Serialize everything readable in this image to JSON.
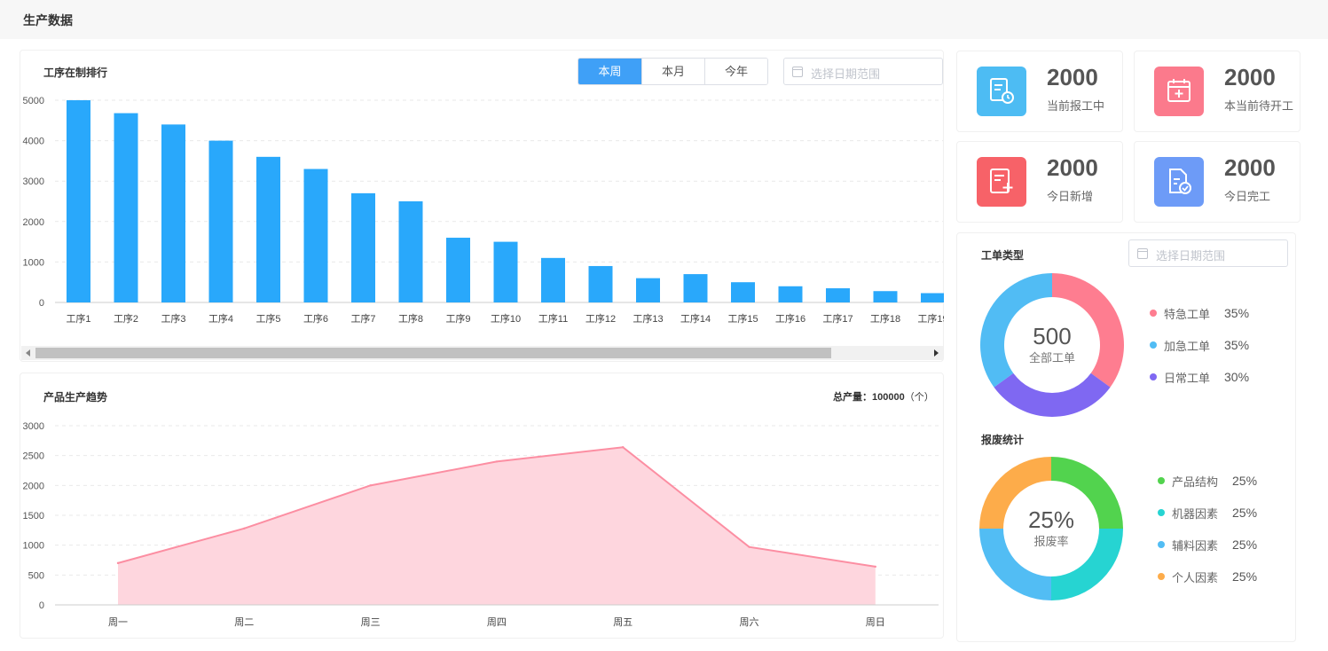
{
  "page": {
    "title": "生产数据"
  },
  "ranking": {
    "title": "工序在制排行",
    "periods": [
      "本周",
      "本月",
      "今年"
    ],
    "active_period": 0,
    "date_placeholder": "选择日期范围"
  },
  "trend": {
    "title": "产品生产趋势",
    "total_label": "总产量：",
    "total_value": "100000",
    "total_unit": "（个）"
  },
  "stats": [
    {
      "value": "2000",
      "label": "当前报工中",
      "color": "#4dbcf3",
      "icon": "report-clock-icon"
    },
    {
      "value": "2000",
      "label": "本当前待开工",
      "color": "#fb7a8c",
      "icon": "calendar-plus-icon"
    },
    {
      "value": "2000",
      "label": "今日新增",
      "color": "#f76268",
      "icon": "document-add-icon"
    },
    {
      "value": "2000",
      "label": "今日完工",
      "color": "#6d9bf7",
      "icon": "document-check-icon"
    }
  ],
  "order_type": {
    "title": "工单类型",
    "date_placeholder": "选择日期范围",
    "center_value": "500",
    "center_label": "全部工单"
  },
  "scrap": {
    "title": "报废统计",
    "center_value": "25%",
    "center_label": "报废率"
  },
  "chart_data": [
    {
      "type": "bar",
      "title": "工序在制排行",
      "categories": [
        "工序1",
        "工序2",
        "工序3",
        "工序4",
        "工序5",
        "工序6",
        "工序7",
        "工序8",
        "工序9",
        "工序10",
        "工序11",
        "工序12",
        "工序13",
        "工序14",
        "工序15",
        "工序16",
        "工序17",
        "工序18",
        "工序19"
      ],
      "values": [
        5000,
        4680,
        4400,
        4000,
        3600,
        3300,
        2700,
        2500,
        1600,
        1500,
        1100,
        900,
        600,
        700,
        500,
        400,
        350,
        280,
        230
      ],
      "yticks": [
        "0",
        "1000",
        "2000",
        "3000",
        "4000",
        "5000"
      ],
      "ylim": [
        0,
        5000
      ],
      "color": "#29a8fb",
      "grid": true
    },
    {
      "type": "area",
      "title": "产品生产趋势",
      "categories": [
        "周一",
        "周二",
        "周三",
        "周四",
        "周五",
        "周六",
        "周日"
      ],
      "values": [
        700,
        1280,
        2000,
        2400,
        2640,
        970,
        640
      ],
      "yticks": [
        "0",
        "500",
        "1000",
        "1500",
        "2000",
        "2500",
        "3000"
      ],
      "ylim": [
        0,
        3000
      ],
      "color": "#fc8ea2",
      "fill": "#fed6de",
      "grid": true
    },
    {
      "type": "pie",
      "title": "工单类型",
      "labels": [
        "特急工单",
        "加急工单",
        "日常工单"
      ],
      "values": [
        35,
        35,
        30
      ],
      "value_labels": [
        "35%",
        "35%",
        "30%"
      ],
      "colors": [
        "#fe7d90",
        "#51bcf4",
        "#7f68f2"
      ],
      "slice_order": [
        0,
        2,
        1
      ],
      "donut": true
    },
    {
      "type": "pie",
      "title": "报废统计",
      "labels": [
        "产品结构",
        "机器因素",
        "辅料因素",
        "个人因素"
      ],
      "values": [
        25,
        25,
        25,
        25
      ],
      "value_labels": [
        "25%",
        "25%",
        "25%",
        "25%"
      ],
      "colors": [
        "#52d34e",
        "#26d4d2",
        "#52bdf4",
        "#fdac4a"
      ],
      "slice_order": [
        0,
        1,
        2,
        3
      ],
      "donut": true
    }
  ]
}
